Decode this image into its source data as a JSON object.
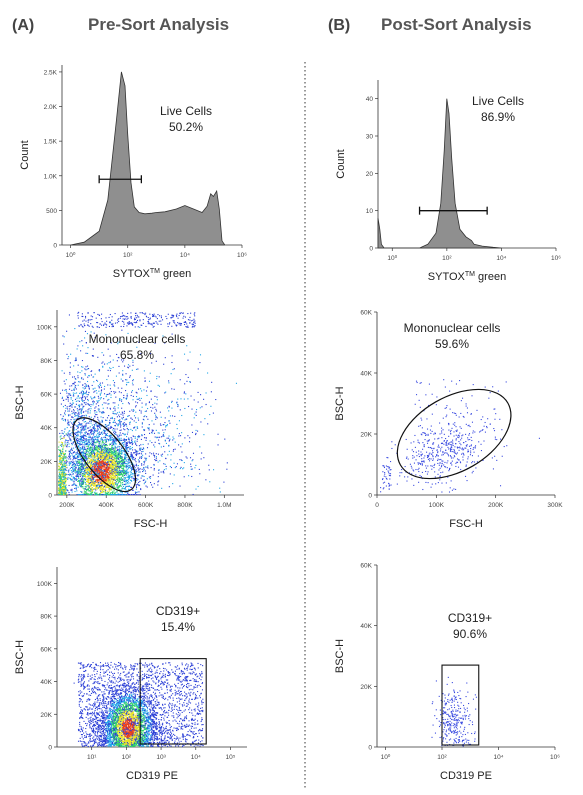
{
  "columns": [
    {
      "letter": "(A)",
      "title": "Pre-Sort Analysis"
    },
    {
      "letter": "(B)",
      "title": "Post-Sort Analysis"
    }
  ],
  "chart_data": [
    {
      "type": "area",
      "panel": "A1",
      "xlabel": "SYTOX",
      "xlabel_sup": "TM",
      "xlabel_suffix": " green",
      "ylabel": "Count",
      "x_scale": "log",
      "xlim": [
        0.5,
        1000000
      ],
      "ylim": [
        0,
        2600
      ],
      "x_ticks": [
        1,
        100,
        10000,
        1000000
      ],
      "x_tick_labels": [
        "10⁰",
        "10²",
        "10⁴",
        "10⁶"
      ],
      "y_ticks": [
        0,
        500,
        1000,
        1500,
        2000,
        2500
      ],
      "y_tick_labels": [
        "0",
        "500",
        "1.0K",
        "1.5K",
        "2.0K",
        "2.5K"
      ],
      "series": [
        {
          "x": [
            1,
            3,
            10,
            20,
            40,
            60,
            80,
            100,
            130,
            170,
            250,
            400,
            700,
            1000,
            2000,
            5000,
            10000,
            20000,
            40000,
            60000,
            80000,
            100000,
            130000,
            160000,
            200000,
            250000
          ],
          "y": [
            0,
            40,
            200,
            650,
            1800,
            2500,
            2300,
            1600,
            900,
            550,
            470,
            450,
            460,
            470,
            480,
            520,
            570,
            520,
            470,
            560,
            740,
            700,
            780,
            520,
            60,
            0
          ]
        }
      ],
      "gate": {
        "label": "Live Cells",
        "value": "50.2%",
        "x_range": [
          10,
          300
        ],
        "y": 950
      }
    },
    {
      "type": "scatter",
      "panel": "B1-histogram",
      "xlabel": "SYTOX",
      "xlabel_sup": "TM",
      "xlabel_suffix": " green",
      "ylabel": "Count",
      "x_scale": "log",
      "xlim": [
        0.3,
        1000000
      ],
      "ylim": [
        0,
        45
      ],
      "x_ticks": [
        1,
        100,
        10000,
        1000000
      ],
      "x_tick_labels": [
        "10⁰",
        "10²",
        "10⁴",
        "10⁶"
      ],
      "y_ticks": [
        0,
        10,
        20,
        30,
        40
      ],
      "y_tick_labels": [
        "0",
        "10",
        "20",
        "30",
        "40"
      ],
      "series": [
        {
          "x": [
            0.3,
            0.35,
            0.4,
            0.5,
            0.7,
            10,
            20,
            40,
            60,
            80,
            100,
            120,
            150,
            200,
            300,
            500,
            800,
            1000,
            2000,
            5000,
            10000
          ],
          "y": [
            8,
            5,
            1,
            0,
            0,
            0,
            1,
            4,
            12,
            26,
            40,
            36,
            24,
            12,
            5,
            3,
            2,
            1,
            0.5,
            0.2,
            0
          ]
        }
      ],
      "gate": {
        "label": "Live Cells",
        "value": "86.9%",
        "x_range": [
          10,
          3000
        ],
        "y": 10
      }
    },
    {
      "type": "scatter",
      "panel": "A2",
      "xlabel": "FSC-H",
      "ylabel": "BSC-H",
      "xlim": [
        150000,
        1100000
      ],
      "ylim": [
        0,
        110000
      ],
      "x_ticks": [
        200000,
        400000,
        600000,
        800000,
        1000000
      ],
      "x_tick_labels": [
        "200K",
        "400K",
        "600K",
        "800K",
        "1.0M"
      ],
      "y_ticks": [
        0,
        20000,
        40000,
        60000,
        80000,
        100000
      ],
      "y_tick_labels": [
        "0",
        "20K",
        "40K",
        "60K",
        "80K",
        "100K"
      ],
      "gate": {
        "label": "Mononuclear cells",
        "value": "65.8%",
        "shape": "ellipse",
        "center": [
          390000,
          24000
        ],
        "radii": [
          180000,
          25000
        ]
      }
    },
    {
      "type": "scatter",
      "panel": "B2",
      "xlabel": "FSC-H",
      "ylabel": "BSC-H",
      "xlim": [
        0,
        300000
      ],
      "ylim": [
        0,
        60000
      ],
      "x_ticks": [
        0,
        100000,
        200000,
        300000
      ],
      "x_tick_labels": [
        "0",
        "100K",
        "200K",
        "300K"
      ],
      "y_ticks": [
        0,
        20000,
        40000,
        60000
      ],
      "y_tick_labels": [
        "0",
        "20K",
        "40K",
        "60K"
      ],
      "gate": {
        "label": "Mononuclear cells",
        "value": "59.6%",
        "shape": "ellipse",
        "center": [
          130000,
          20000
        ],
        "radii": [
          85000,
          16000
        ]
      }
    },
    {
      "type": "scatter",
      "panel": "A3",
      "xlabel": "CD319 PE",
      "ylabel": "BSC-H",
      "x_scale": "log",
      "xlim": [
        1,
        300000
      ],
      "ylim": [
        0,
        110000
      ],
      "x_ticks": [
        10,
        100,
        1000,
        10000,
        100000
      ],
      "x_tick_labels": [
        "10¹",
        "10²",
        "10³",
        "10⁴",
        "10⁵"
      ],
      "y_ticks": [
        0,
        20000,
        40000,
        60000,
        80000,
        100000
      ],
      "y_tick_labels": [
        "0",
        "20K",
        "40K",
        "60K",
        "80K",
        "100K"
      ],
      "gate": {
        "label": "CD319+",
        "value": "15.4%",
        "shape": "rectangle",
        "x_range": [
          250,
          20000
        ],
        "y_range": [
          0,
          54000
        ]
      }
    },
    {
      "type": "scatter",
      "panel": "B3",
      "xlabel": "CD319 PE",
      "ylabel": "BSC-H",
      "x_scale": "log",
      "xlim": [
        0.5,
        1000000
      ],
      "ylim": [
        0,
        60000
      ],
      "x_ticks": [
        1,
        100,
        10000,
        1000000
      ],
      "x_tick_labels": [
        "10⁰",
        "10²",
        "10⁴",
        "10⁶"
      ],
      "y_ticks": [
        0,
        20000,
        40000,
        60000
      ],
      "y_tick_labels": [
        "0",
        "20K",
        "40K",
        "60K"
      ],
      "gate": {
        "label": "CD319+",
        "value": "90.6%",
        "shape": "rectangle",
        "x_range": [
          100,
          2000
        ],
        "y_range": [
          0,
          27000
        ]
      }
    }
  ]
}
